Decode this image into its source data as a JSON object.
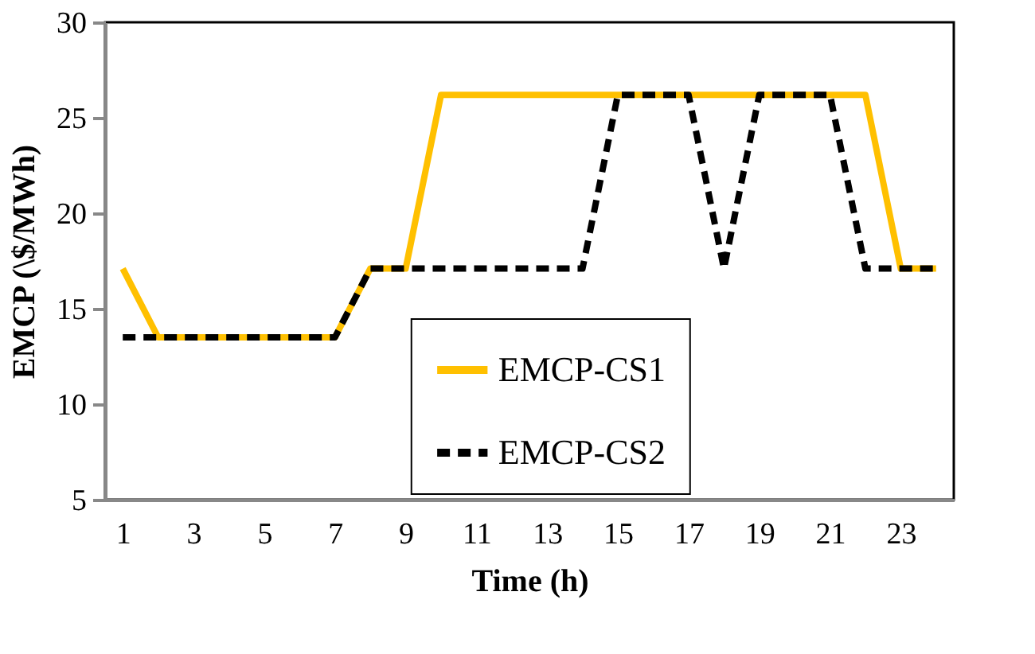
{
  "chart_data": {
    "type": "line",
    "xlabel": "Time (h)",
    "ylabel": "EMCP (\\$/MWh)",
    "x": [
      1,
      2,
      3,
      4,
      5,
      6,
      7,
      8,
      9,
      10,
      11,
      12,
      13,
      14,
      15,
      16,
      17,
      18,
      19,
      20,
      21,
      22,
      23,
      24
    ],
    "xlim": [
      0.5,
      24.5
    ],
    "xticks": [
      1,
      3,
      5,
      7,
      9,
      11,
      13,
      15,
      17,
      19,
      21,
      23
    ],
    "ylim": [
      5,
      30
    ],
    "yticks": [
      5,
      10,
      15,
      20,
      25,
      30
    ],
    "grid": false,
    "legend": "bottom",
    "marker": "none",
    "series": [
      {
        "name": "EMCP-CS1",
        "color": "#ffc000",
        "line_style": "solid",
        "values": [
          17.1,
          13.5,
          13.5,
          13.5,
          13.5,
          13.5,
          13.5,
          17.1,
          17.1,
          26.2,
          26.2,
          26.2,
          26.2,
          26.2,
          26.2,
          26.2,
          26.2,
          26.2,
          26.2,
          26.2,
          26.2,
          26.2,
          17.1,
          17.1
        ]
      },
      {
        "name": "EMCP-CS2",
        "color": "#000000",
        "line_style": "dashed",
        "values": [
          13.5,
          13.5,
          13.5,
          13.5,
          13.5,
          13.5,
          13.5,
          17.1,
          17.1,
          17.1,
          17.1,
          17.1,
          17.1,
          17.1,
          26.2,
          26.2,
          26.2,
          17.1,
          26.2,
          26.2,
          26.2,
          17.1,
          17.1,
          17.1
        ]
      }
    ]
  }
}
